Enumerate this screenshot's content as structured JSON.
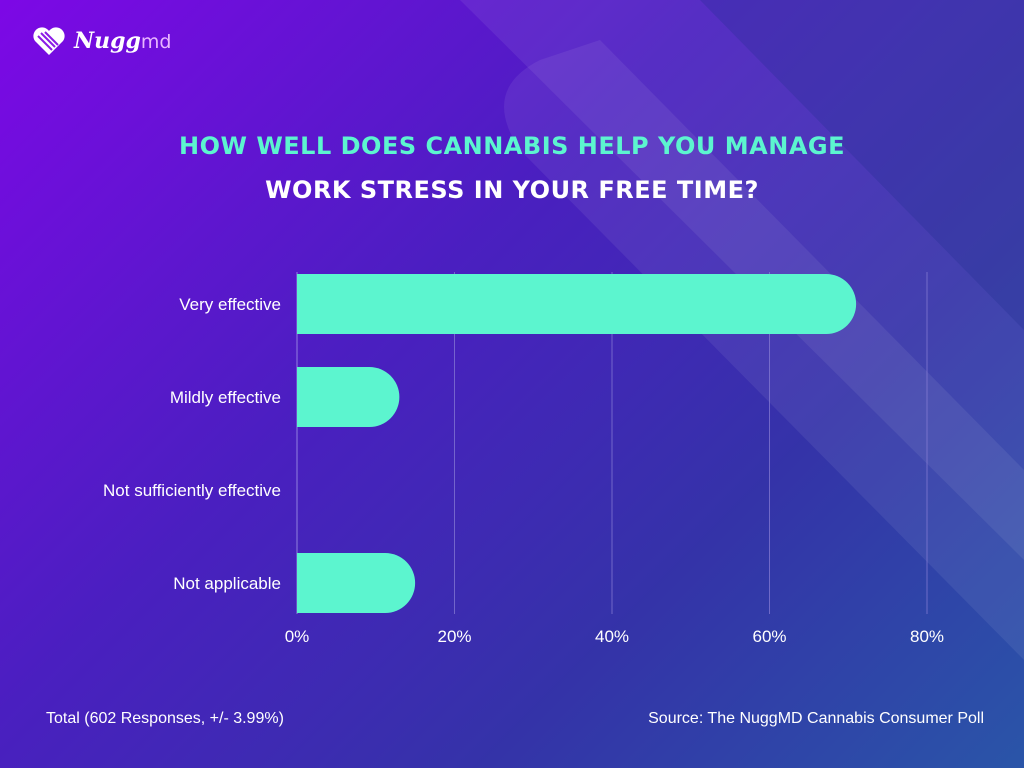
{
  "brand": {
    "logo_text": "Nugg",
    "logo_suffix": "md"
  },
  "colors": {
    "bar": "#5cf5cf",
    "title_accent": "#5cf5cf",
    "gridline": "#8a7fd6"
  },
  "chart_data": {
    "type": "bar",
    "orientation": "horizontal",
    "title_line1": "HOW WELL DOES CANNABIS HELP YOU MANAGE",
    "title_line2": "WORK STRESS IN YOUR FREE TIME?",
    "categories": [
      "Very effective",
      "Mildly effective",
      "Not sufficiently effective",
      "Not applicable"
    ],
    "values": [
      71,
      13,
      0,
      15
    ],
    "xlim": [
      0,
      80
    ],
    "x_ticks": [
      "0%",
      "20%",
      "40%",
      "60%",
      "80%"
    ],
    "x_tick_values": [
      0,
      20,
      40,
      60,
      80
    ],
    "grid": true,
    "xlabel": "",
    "ylabel": ""
  },
  "footer": {
    "total": "Total (602 Responses, +/- 3.99%)",
    "source": "Source: The NuggMD Cannabis Consumer Poll"
  }
}
